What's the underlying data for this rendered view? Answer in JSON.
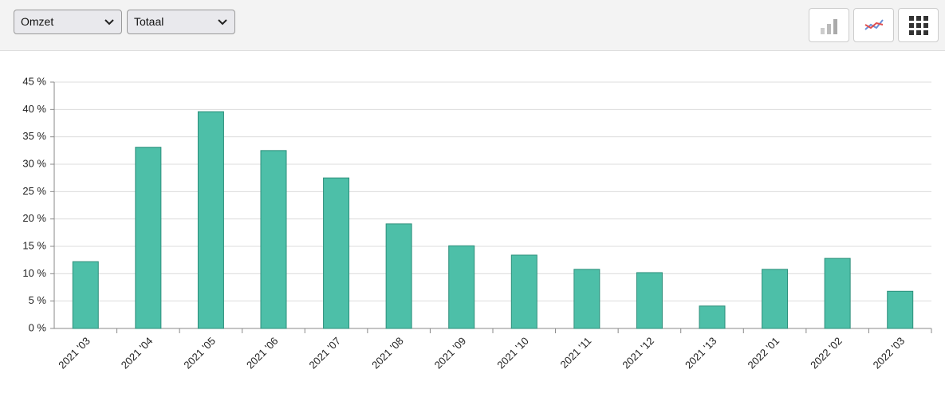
{
  "toolbar": {
    "metric": "Omzet",
    "scope": "Totaal"
  },
  "chart_data": {
    "type": "bar",
    "categories": [
      "2021 '03",
      "2021 '04",
      "2021 '05",
      "2021 '06",
      "2021 '07",
      "2021 '08",
      "2021 '09",
      "2021 '10",
      "2021 '11",
      "2021 '12",
      "2021 '13",
      "2022 '01",
      "2022 '02",
      "2022 '03"
    ],
    "values": [
      12.2,
      33.1,
      39.6,
      32.5,
      27.5,
      19.1,
      15.1,
      13.4,
      10.8,
      10.2,
      4.1,
      10.8,
      12.8,
      6.8
    ],
    "color": "#4dbfa8",
    "ylim": [
      0,
      45
    ],
    "yticks": [
      {
        "value": 0,
        "label": "0 %"
      },
      {
        "value": 5,
        "label": "5 %"
      },
      {
        "value": 10,
        "label": "10 %"
      },
      {
        "value": 15,
        "label": "15 %"
      },
      {
        "value": 20,
        "label": "20 %"
      },
      {
        "value": 25,
        "label": "25 %"
      },
      {
        "value": 30,
        "label": "30 %"
      },
      {
        "value": 35,
        "label": "35 %"
      },
      {
        "value": 40,
        "label": "40 %"
      },
      {
        "value": 45,
        "label": "45 %"
      }
    ],
    "grid": true
  }
}
